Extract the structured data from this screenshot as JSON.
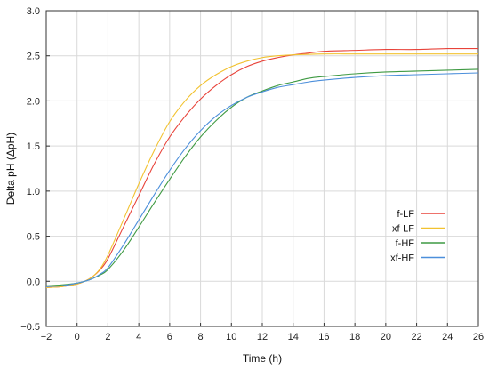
{
  "chart_data": {
    "type": "line",
    "title": "",
    "xlabel": "Time (h)",
    "ylabel": "Delta pH (ΔpH)",
    "xlim": [
      -2,
      26
    ],
    "ylim": [
      -0.5,
      3.0
    ],
    "x_ticks": [
      -2,
      0,
      2,
      4,
      6,
      8,
      10,
      12,
      14,
      16,
      18,
      20,
      22,
      24,
      26
    ],
    "y_ticks": [
      -0.5,
      0.0,
      0.5,
      1.0,
      1.5,
      2.0,
      2.5,
      3.0
    ],
    "grid": true,
    "legend_position": "center-right",
    "series": [
      {
        "name": "f-LF",
        "color": "#e8433a",
        "x": [
          -2,
          -1,
          0,
          0.5,
          1,
          1.5,
          2,
          3,
          4,
          5,
          6,
          7,
          8,
          9,
          10,
          11,
          12,
          13,
          14,
          15,
          16,
          18,
          20,
          22,
          24,
          26
        ],
        "y": [
          -0.07,
          -0.06,
          -0.03,
          0.0,
          0.05,
          0.13,
          0.25,
          0.6,
          0.95,
          1.3,
          1.6,
          1.83,
          2.02,
          2.17,
          2.29,
          2.38,
          2.44,
          2.48,
          2.51,
          2.53,
          2.55,
          2.56,
          2.57,
          2.57,
          2.58,
          2.58
        ]
      },
      {
        "name": "xf-LF",
        "color": "#f2c230",
        "x": [
          -2,
          -1,
          0,
          0.5,
          1,
          1.5,
          2,
          3,
          4,
          5,
          6,
          7,
          8,
          9,
          10,
          11,
          12,
          13,
          14,
          16,
          18,
          20,
          22,
          24,
          26
        ],
        "y": [
          -0.07,
          -0.06,
          -0.03,
          0.0,
          0.05,
          0.14,
          0.29,
          0.68,
          1.08,
          1.45,
          1.77,
          2.0,
          2.17,
          2.29,
          2.38,
          2.44,
          2.48,
          2.5,
          2.51,
          2.52,
          2.52,
          2.52,
          2.52,
          2.52,
          2.52
        ]
      },
      {
        "name": "f-HF",
        "color": "#3f9a43",
        "x": [
          -2,
          -1,
          0,
          0.5,
          1,
          1.5,
          2,
          3,
          4,
          5,
          6,
          7,
          8,
          9,
          10,
          11,
          12,
          13,
          14,
          15,
          16,
          18,
          20,
          22,
          24,
          26
        ],
        "y": [
          -0.05,
          -0.04,
          -0.02,
          0.0,
          0.03,
          0.07,
          0.13,
          0.34,
          0.6,
          0.87,
          1.13,
          1.38,
          1.6,
          1.78,
          1.93,
          2.04,
          2.11,
          2.17,
          2.21,
          2.25,
          2.27,
          2.3,
          2.32,
          2.33,
          2.34,
          2.35
        ]
      },
      {
        "name": "xf-HF",
        "color": "#4c8fdb",
        "x": [
          -2,
          -1,
          0,
          0.5,
          1,
          1.5,
          2,
          3,
          4,
          5,
          6,
          7,
          8,
          9,
          10,
          11,
          12,
          13,
          14,
          15,
          16,
          18,
          20,
          22,
          24,
          26
        ],
        "y": [
          -0.06,
          -0.05,
          -0.02,
          0.0,
          0.03,
          0.08,
          0.15,
          0.4,
          0.68,
          0.96,
          1.23,
          1.47,
          1.67,
          1.83,
          1.95,
          2.04,
          2.1,
          2.15,
          2.18,
          2.21,
          2.23,
          2.26,
          2.28,
          2.29,
          2.3,
          2.31
        ]
      }
    ]
  }
}
